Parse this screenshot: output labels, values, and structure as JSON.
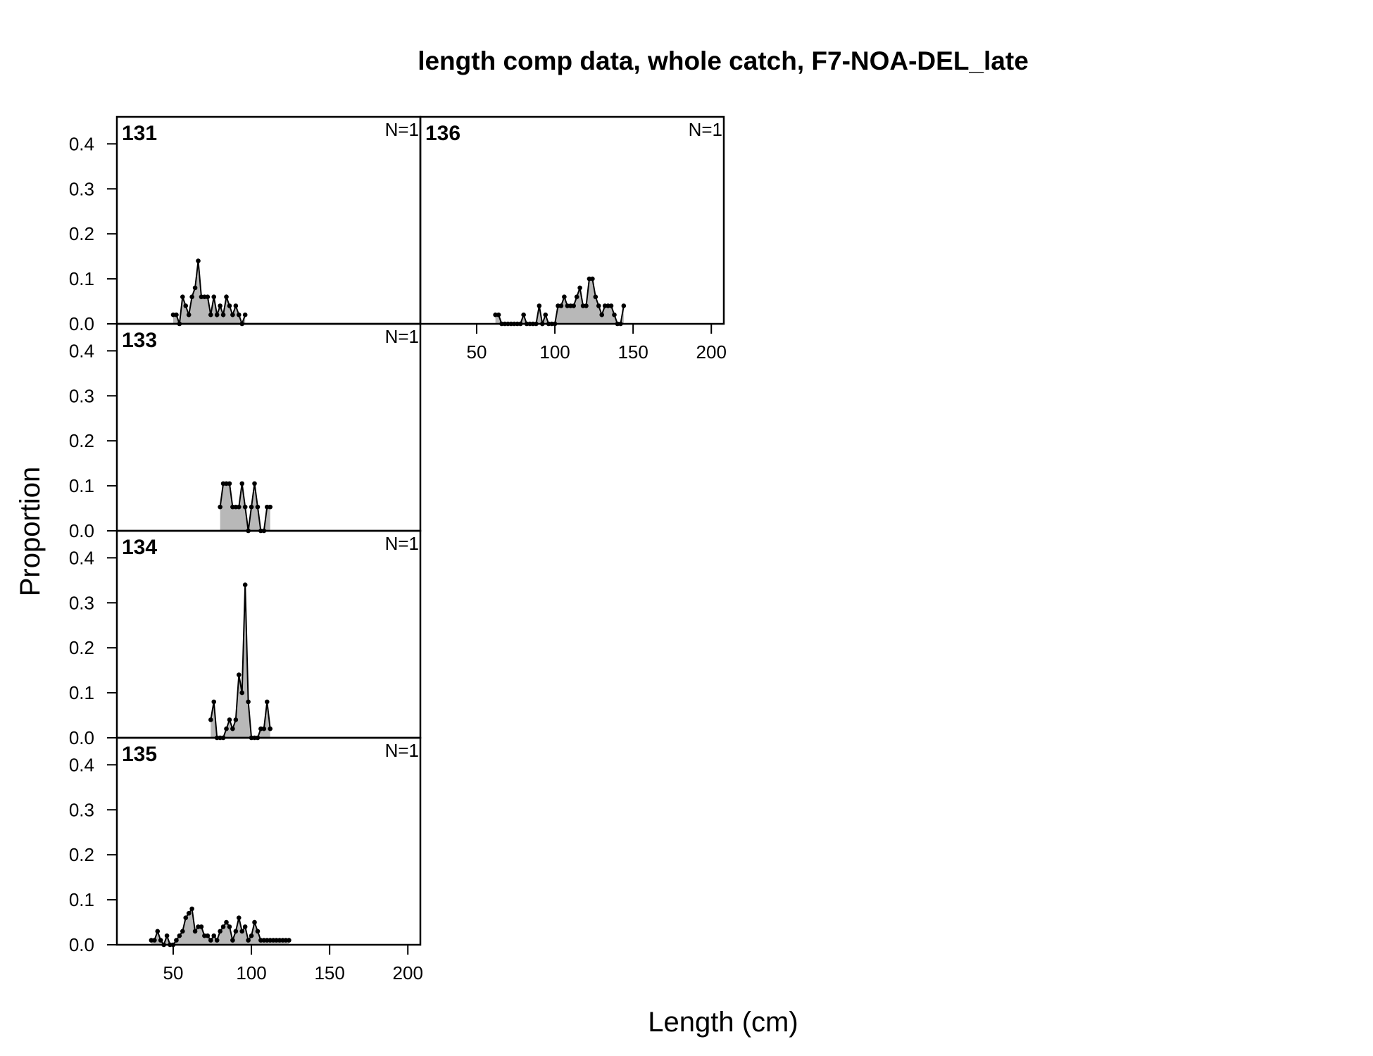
{
  "chart_data": {
    "type": "area",
    "title": "length comp data, whole catch, F7-NOA-DEL_late",
    "xlabel": "Length (cm)",
    "ylabel": "Proportion",
    "xlim": [
      14,
      208
    ],
    "ylim": [
      0,
      0.46
    ],
    "x_ticks": [
      50,
      100,
      150,
      200
    ],
    "x_tick_labels": [
      "50",
      "100",
      "150",
      "200"
    ],
    "y_ticks": [
      0,
      0.1,
      0.2,
      0.3,
      0.4
    ],
    "y_tick_labels": [
      "0.0",
      "0.1",
      "0.2",
      "0.3",
      "0.4"
    ],
    "grid": false,
    "fill_color": "#b8b8b8",
    "line_color": "#000000",
    "panels": [
      {
        "label": "131",
        "n_label": "N=1",
        "x": [
          50,
          52,
          54,
          56,
          58,
          60,
          62,
          64,
          66,
          68,
          70,
          72,
          74,
          76,
          78,
          80,
          82,
          84,
          86,
          88,
          90,
          92,
          94,
          96
        ],
        "y": [
          0.02,
          0.02,
          0,
          0.06,
          0.04,
          0.02,
          0.06,
          0.08,
          0.14,
          0.06,
          0.06,
          0.06,
          0.02,
          0.06,
          0.02,
          0.04,
          0.02,
          0.06,
          0.04,
          0.02,
          0.04,
          0.02,
          0,
          0.02
        ]
      },
      {
        "label": "133",
        "n_label": "N=1",
        "x": [
          80,
          82,
          84,
          86,
          88,
          90,
          92,
          94,
          96,
          98,
          100,
          102,
          104,
          106,
          108,
          110,
          112
        ],
        "y": [
          0.053,
          0.105,
          0.105,
          0.105,
          0.053,
          0.053,
          0.053,
          0.105,
          0.053,
          0,
          0.053,
          0.105,
          0.053,
          0,
          0,
          0.053,
          0.053
        ]
      },
      {
        "label": "134",
        "n_label": "N=1",
        "x": [
          74,
          76,
          78,
          80,
          82,
          84,
          86,
          88,
          90,
          92,
          94,
          96,
          98,
          100,
          102,
          104,
          106,
          108,
          110,
          112
        ],
        "y": [
          0.04,
          0.08,
          0,
          0,
          0,
          0.02,
          0.04,
          0.02,
          0.04,
          0.14,
          0.1,
          0.34,
          0.08,
          0,
          0,
          0,
          0.02,
          0.02,
          0.08,
          0.02
        ]
      },
      {
        "label": "135",
        "n_label": "N=1",
        "x": [
          36,
          38,
          40,
          42,
          44,
          46,
          48,
          50,
          52,
          54,
          56,
          58,
          60,
          62,
          64,
          66,
          68,
          70,
          72,
          74,
          76,
          78,
          80,
          82,
          84,
          86,
          88,
          90,
          92,
          94,
          96,
          98,
          100,
          102,
          104,
          106,
          108,
          110,
          112,
          114,
          116,
          118,
          120,
          122,
          124
        ],
        "y": [
          0.01,
          0.01,
          0.03,
          0.01,
          0,
          0.02,
          0,
          0,
          0.01,
          0.02,
          0.03,
          0.06,
          0.07,
          0.08,
          0.03,
          0.04,
          0.04,
          0.02,
          0.02,
          0.01,
          0.02,
          0.01,
          0.03,
          0.04,
          0.05,
          0.04,
          0.01,
          0.03,
          0.06,
          0.03,
          0.04,
          0.01,
          0.02,
          0.05,
          0.03,
          0.01,
          0.01,
          0.01,
          0.01,
          0.01,
          0.01,
          0.01,
          0.01,
          0.01,
          0.01
        ]
      },
      {
        "label": "136",
        "n_label": "N=1",
        "x": [
          62,
          64,
          66,
          68,
          70,
          72,
          74,
          76,
          78,
          80,
          82,
          84,
          86,
          88,
          90,
          92,
          94,
          96,
          98,
          100,
          102,
          104,
          106,
          108,
          110,
          112,
          114,
          116,
          118,
          120,
          122,
          124,
          126,
          128,
          130,
          132,
          134,
          136,
          138,
          140,
          142,
          144
        ],
        "y": [
          0.02,
          0.02,
          0,
          0,
          0,
          0,
          0,
          0,
          0,
          0.02,
          0,
          0,
          0,
          0,
          0.04,
          0,
          0.02,
          0,
          0,
          0,
          0.04,
          0.04,
          0.06,
          0.04,
          0.04,
          0.04,
          0.06,
          0.08,
          0.04,
          0.04,
          0.1,
          0.1,
          0.06,
          0.04,
          0.02,
          0.04,
          0.04,
          0.04,
          0.02,
          0,
          0,
          0.04
        ]
      }
    ]
  }
}
